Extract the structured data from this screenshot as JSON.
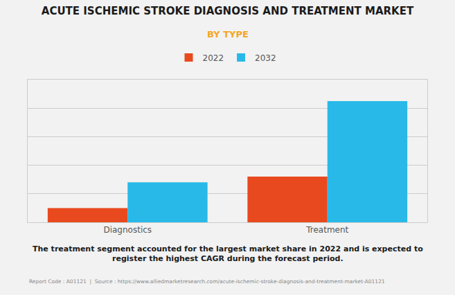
{
  "chart_data": {
    "type": "bar",
    "title": "ACUTE ISCHEMIC STROKE DIAGNOSIS AND TREATMENT MARKET",
    "subtitle": "BY TYPE",
    "categories": [
      "Diagnostics",
      "Treatment"
    ],
    "series": [
      {
        "name": "2022",
        "color": "#E8491E",
        "values": [
          1.0,
          3.2
        ]
      },
      {
        "name": "2032",
        "color": "#29B9E8",
        "values": [
          2.8,
          8.5
        ]
      }
    ],
    "ylim": [
      0,
      10
    ],
    "yticks": [
      0,
      2,
      4,
      6,
      8,
      10
    ],
    "grid": true,
    "legend": "top",
    "tick_labels": "x",
    "annotations": [
      "The treatment segment accounted for the largest market share in 2022 and is expected to\nregister the highest CAGR during the forecast period.",
      "Report Code : A01121  |  Source : https://www.alliedmarketresearch.com/acute-ischemic-stroke-diagnosis-and-treatment-market-A01121"
    ]
  }
}
